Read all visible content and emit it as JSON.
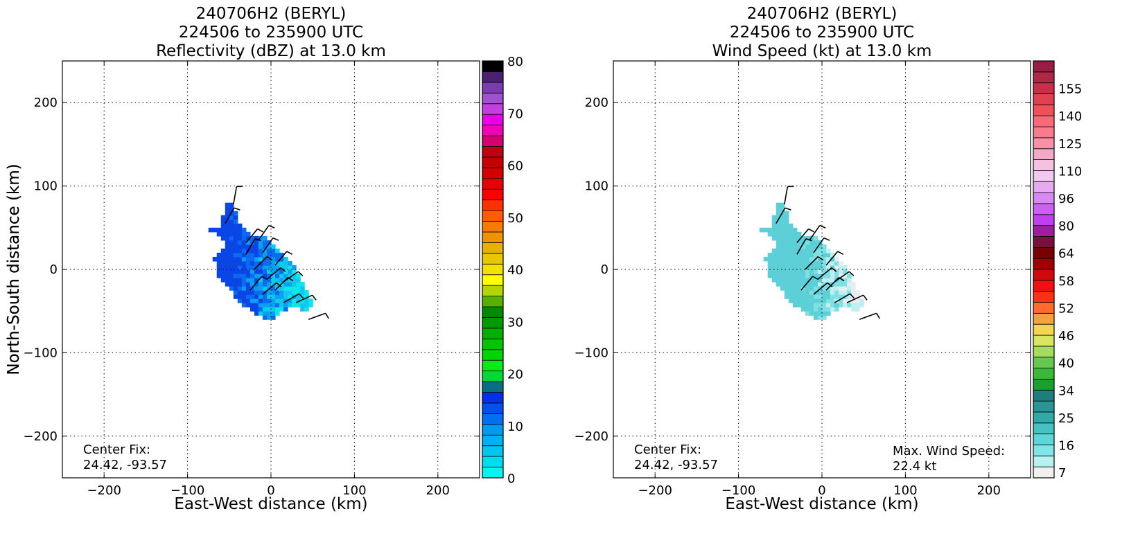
{
  "chart_data": [
    {
      "type": "heatmap",
      "title_lines": [
        "240706H2 (BERYL)",
        "224506 to 235900 UTC",
        "Reflectivity (dBZ) at 13.0 km"
      ],
      "xlabel": "East-West distance (km)",
      "ylabel": "North-South distance (km)",
      "xlim": [
        -250,
        250
      ],
      "ylim": [
        -250,
        250
      ],
      "xticks": [
        -200,
        -100,
        0,
        100,
        200
      ],
      "yticks": [
        -200,
        -100,
        0,
        100,
        200
      ],
      "xtick_labels": [
        "−200",
        "−100",
        "0",
        "100",
        "200"
      ],
      "ytick_labels": [
        "−200",
        "−100",
        "0",
        "100",
        "200"
      ],
      "grid": true,
      "annotation_lines": [
        "Center Fix:",
        "24.42, -93.57"
      ],
      "annotation_position": "bottom-left",
      "colorbar": {
        "min": 0,
        "max": 80,
        "tick_values": [
          0,
          10,
          20,
          30,
          40,
          50,
          60,
          70,
          80
        ],
        "tick_labels": [
          "0",
          "10",
          "20",
          "30",
          "40",
          "50",
          "60",
          "70",
          "80"
        ],
        "colors": [
          "#00f6f0",
          "#00ddf0",
          "#00c6f0",
          "#00b0f0",
          "#0099f0",
          "#0070f0",
          "#0050f0",
          "#0030e8",
          "#0a6e82",
          "#00d836",
          "#00ec1a",
          "#00d500",
          "#00c500",
          "#00b000",
          "#009b00",
          "#008a00",
          "#55b000",
          "#b3d600",
          "#ffff00",
          "#f3df00",
          "#e8c700",
          "#e8b000",
          "#f09200",
          "#f87a00",
          "#ff5e00",
          "#ff3000",
          "#ff0000",
          "#e80000",
          "#d40000",
          "#c40000",
          "#c00010",
          "#d4006f",
          "#f000b8",
          "#e800e8",
          "#c53fe0",
          "#a050d0",
          "#7a3cb0",
          "#4a2070",
          "#000000"
        ]
      },
      "field_color": "reflectivity (blue to cyan, 0-15 dBZ)",
      "barbs_shown": true
    },
    {
      "type": "heatmap",
      "title_lines": [
        "240706H2 (BERYL)",
        "224506 to 235900 UTC",
        "Wind Speed (kt) at 13.0 km"
      ],
      "xlabel": "East-West distance (km)",
      "ylabel": "North-South distance (km)",
      "xlim": [
        -250,
        250
      ],
      "ylim": [
        -250,
        250
      ],
      "xticks": [
        -200,
        -100,
        0,
        100,
        200
      ],
      "yticks": [
        -200,
        -100,
        0,
        100,
        200
      ],
      "xtick_labels": [
        "−200",
        "−100",
        "0",
        "100",
        "200"
      ],
      "ytick_labels": [
        "−200",
        "−100",
        "0",
        "100",
        "200"
      ],
      "grid": true,
      "annotation_lines": [
        "Center Fix:",
        "24.42, -93.57"
      ],
      "annotation_position": "bottom-left",
      "max_wind_lines": [
        "Max. Wind Speed:",
        "22.4 kt"
      ],
      "max_wind_position": "bottom-right",
      "colorbar": {
        "tick_labels": [
          "7",
          "16",
          "25",
          "34",
          "40",
          "46",
          "52",
          "58",
          "64",
          "80",
          "96",
          "110",
          "125",
          "140",
          "155"
        ],
        "colors": [
          "#efefef",
          "#b4f1f1",
          "#7ee6e6",
          "#5cd6d6",
          "#46c2c2",
          "#32a9a9",
          "#2a9595",
          "#1f7f7f",
          "#18a030",
          "#3ab83a",
          "#66c850",
          "#a4dc5c",
          "#d8e660",
          "#f4d450",
          "#f4a040",
          "#ff6a2e",
          "#ff3018",
          "#f01010",
          "#d00a0a",
          "#a00000",
          "#780000",
          "#7a1040",
          "#a01ca0",
          "#c040f0",
          "#cc60f0",
          "#d888f0",
          "#e6a8f0",
          "#f0c8f0",
          "#f6c0e0",
          "#f4a8c8",
          "#f890a8",
          "#f87c8c",
          "#f86a78",
          "#f05058",
          "#e04050",
          "#c83048",
          "#b02848",
          "#981c44"
        ]
      },
      "field_color": "wind speed (cyan to light grey, 7-22 kt)",
      "barbs_shown": true
    }
  ]
}
